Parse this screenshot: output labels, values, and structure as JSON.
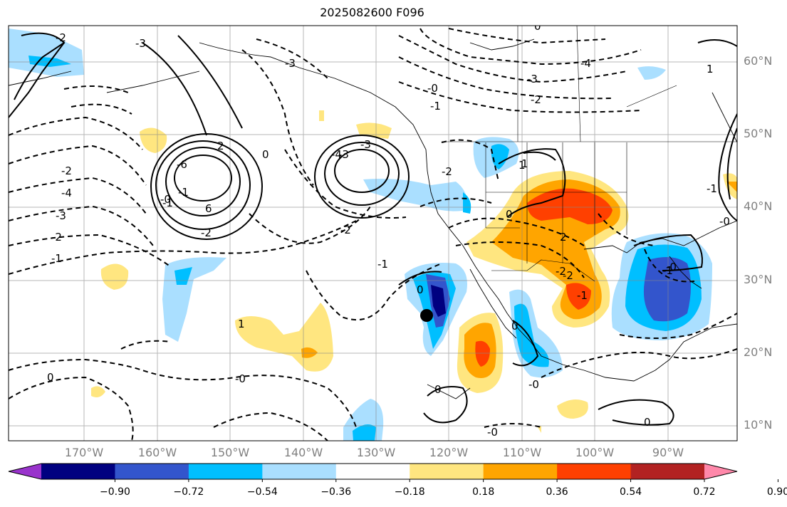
{
  "title": "2025082600 F096",
  "lat_labels": [
    "60°N",
    "50°N",
    "40°N",
    "30°N",
    "20°N",
    "10°N"
  ],
  "lon_labels": [
    "170°W",
    "160°W",
    "150°W",
    "140°W",
    "130°W",
    "120°W",
    "110°W",
    "100°W",
    "90°W"
  ],
  "colorbar": {
    "ticks": [
      "−0.90",
      "−0.72",
      "−0.54",
      "−0.36",
      "−0.18",
      "0.18",
      "0.36",
      "0.54",
      "0.72",
      "0.90"
    ],
    "colors": [
      "#9933cc",
      "#000080",
      "#3355cc",
      "#00bfff",
      "#aadfff",
      "#ffffff",
      "#ffe680",
      "#ffa500",
      "#ff4000",
      "#b22222",
      "#ff88aa"
    ]
  },
  "contour_labels": {
    "values": [
      "-2",
      "-3",
      "-4",
      "-3",
      "-2",
      "-1",
      "-0",
      "-1",
      "-2",
      "-3",
      "-4",
      "-3",
      "-2",
      "-1",
      "6",
      "2",
      "-6",
      "-3",
      "-2",
      "-0",
      "-1",
      "0",
      "-1",
      "1",
      "-3",
      "-4",
      "-2",
      "1",
      "-2",
      "0",
      "1",
      "2",
      "-2",
      "0",
      "-0",
      "0",
      "-0",
      "-0",
      "-1",
      "0",
      "0",
      "-2",
      "-1",
      "-0",
      "-0",
      "-1",
      "0",
      "0",
      "1"
    ]
  },
  "marker": {
    "name": "point-marker"
  }
}
